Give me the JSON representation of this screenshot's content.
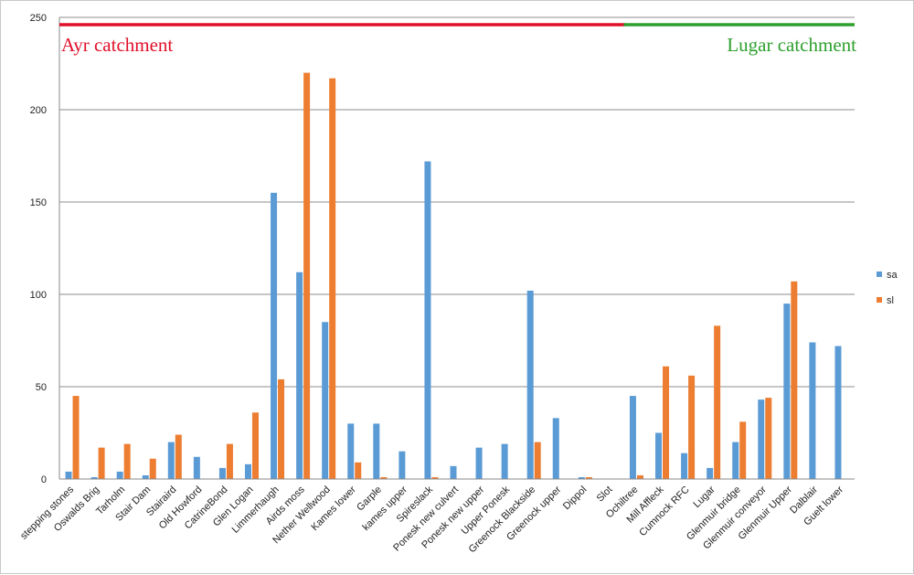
{
  "chart_data": {
    "type": "bar",
    "ylim": [
      0,
      250
    ],
    "yticks": [
      "0",
      "50",
      "100",
      "150",
      "200",
      "250"
    ],
    "grid": true,
    "legend_position": "right",
    "categories": [
      "stepping stones",
      "Oswalds Brig",
      "Tarholm",
      "Stair Dam",
      "Stairaird",
      "Old Howford",
      "CatrineBond",
      "Glen Logan",
      "Limmerhaugh",
      "Airds moss",
      "Nether Wellwood",
      "Kames lower",
      "Garple",
      "kames upper",
      "Spireslack",
      "Ponesk new culvert",
      "Ponesk new upper",
      "Upper Ponesk",
      "Greenock Blackside",
      "Greenock upper",
      "Dippol",
      "Slot",
      "Ochiltree",
      "Mill Affleck",
      "Cumnock RFC",
      "Lugar",
      "Glenmuir bridge",
      "Glenmuir conveyor",
      "Glenmuir Upper",
      "Dalblair",
      "Guelt lower"
    ],
    "series": [
      {
        "name": "sa",
        "color": "#5b9bd5",
        "values": [
          4,
          1,
          4,
          2,
          20,
          12,
          6,
          8,
          155,
          112,
          85,
          30,
          30,
          15,
          172,
          7,
          17,
          19,
          102,
          33,
          1,
          0,
          45,
          25,
          14,
          6,
          20,
          43,
          95,
          74,
          72
        ]
      },
      {
        "name": "sl",
        "color": "#ed7d31",
        "values": [
          45,
          17,
          19,
          11,
          24,
          0,
          19,
          36,
          54,
          220,
          217,
          9,
          1,
          0,
          1,
          0,
          0,
          0,
          20,
          0,
          1,
          0,
          2,
          61,
          56,
          83,
          31,
          44,
          107,
          0,
          0
        ]
      }
    ],
    "annotations": [
      {
        "text": "Ayr catchment",
        "color": "#e0102a",
        "first_category": 0,
        "last_category": 21
      },
      {
        "text": "Lugar catchment",
        "color": "#2ea02e",
        "first_category": 22,
        "last_category": 30
      }
    ]
  }
}
